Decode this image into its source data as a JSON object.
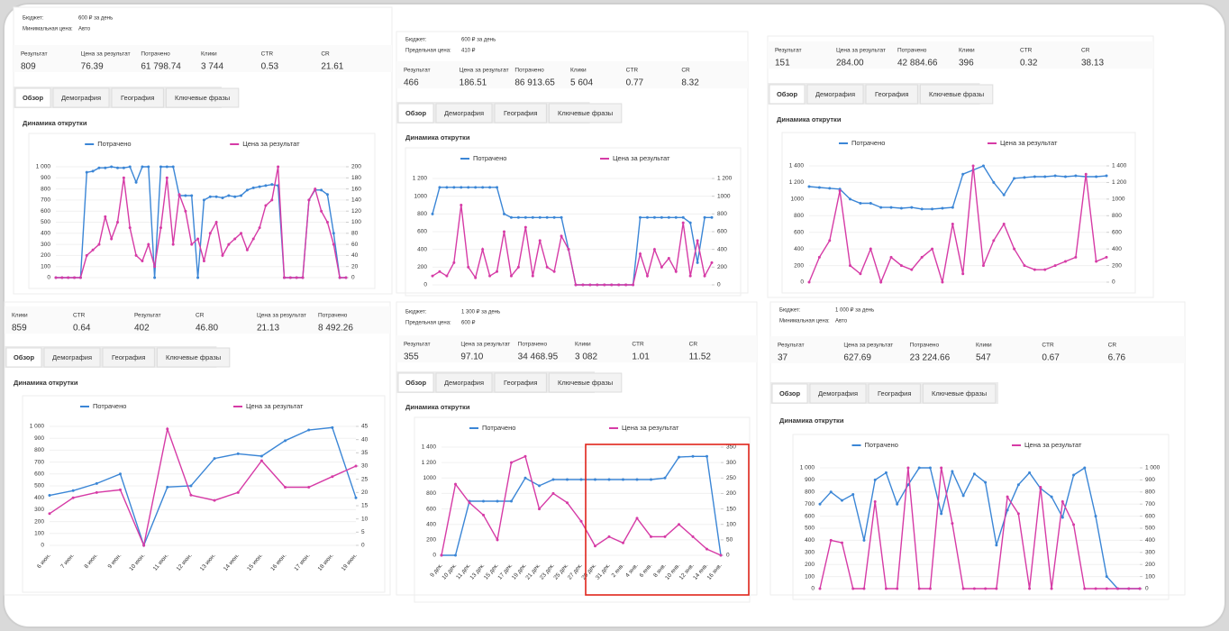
{
  "panels": [
    {
      "budget": [
        {
          "label": "Бюджет:",
          "value": "600 ₽ за день"
        },
        {
          "label": "Минимальная цена:",
          "value": "Авто"
        }
      ],
      "metrics": {
        "labels": [
          "Результат",
          "Цена за результат",
          "Потрачено",
          "Клики",
          "CTR",
          "CR"
        ],
        "values": [
          "809",
          "76.39",
          "61 798.74",
          "3 744",
          "0.53",
          "21.61"
        ]
      },
      "tabs": [
        "Обзор",
        "Демография",
        "География",
        "Ключевые фразы"
      ]
    },
    {
      "budget": [
        {
          "label": "Бюджет:",
          "value": "600 ₽ за день"
        },
        {
          "label": "Предельная цена:",
          "value": "410 ₽"
        }
      ],
      "metrics": {
        "labels": [
          "Результат",
          "Цена за результат",
          "Потрачено",
          "Клики",
          "CTR",
          "CR"
        ],
        "values": [
          "466",
          "186.51",
          "86 913.65",
          "5 604",
          "0.77",
          "8.32"
        ]
      },
      "tabs": [
        "Обзор",
        "Демография",
        "География",
        "Ключевые фразы"
      ]
    },
    {
      "metrics": {
        "labels": [
          "Результат",
          "Цена за результат",
          "Потрачено",
          "Клики",
          "CTR",
          "CR"
        ],
        "values": [
          "151",
          "284.00",
          "42 884.66",
          "396",
          "0.32",
          "38.13"
        ]
      },
      "tabs": [
        "Обзор",
        "Демография",
        "География",
        "Ключевые фразы"
      ]
    },
    {
      "metrics": {
        "labels": [
          "Клики",
          "CTR",
          "Результат",
          "CR",
          "Цена за результат",
          "Потрачено"
        ],
        "values": [
          "859",
          "0.64",
          "402",
          "46.80",
          "21.13",
          "8 492.26"
        ]
      },
      "tabs": [
        "Обзор",
        "Демография",
        "География",
        "Ключевые фразы"
      ]
    },
    {
      "budget": [
        {
          "label": "Бюджет:",
          "value": "1 300 ₽ за день"
        },
        {
          "label": "Предельная цена:",
          "value": "600 ₽"
        }
      ],
      "metrics": {
        "labels": [
          "Результат",
          "Цена за результат",
          "Потрачено",
          "Клики",
          "CTR",
          "CR"
        ],
        "values": [
          "355",
          "97.10",
          "34 468.95",
          "3 082",
          "1.01",
          "11.52"
        ]
      },
      "tabs": [
        "Обзор",
        "Демография",
        "География",
        "Ключевые фразы"
      ]
    },
    {
      "budget": [
        {
          "label": "Бюджет:",
          "value": "1 000 ₽ за день"
        },
        {
          "label": "Минимальная цена:",
          "value": "Авто"
        }
      ],
      "metrics": {
        "labels": [
          "Результат",
          "Цена за результат",
          "Потрачено",
          "Клики",
          "CTR",
          "CR"
        ],
        "values": [
          "37",
          "627.69",
          "23 224.66",
          "547",
          "0.67",
          "6.76"
        ]
      },
      "tabs": [
        "Обзор",
        "Демография",
        "География",
        "Ключевые фразы"
      ]
    }
  ],
  "chart_data": [
    {
      "type": "line",
      "title": "Динамика открутки",
      "series": [
        {
          "name": "Потрачено",
          "color": "#3b86d6",
          "values": [
            0,
            0,
            0,
            0,
            0,
            950,
            960,
            990,
            990,
            1000,
            990,
            990,
            1000,
            860,
            1000,
            1000,
            0,
            1000,
            1000,
            1000,
            740,
            740,
            740,
            0,
            700,
            730,
            730,
            720,
            740,
            730,
            740,
            790,
            810,
            820,
            830,
            840,
            830,
            0,
            0,
            0,
            0,
            700,
            790,
            790,
            750,
            400,
            0,
            0
          ]
        },
        {
          "name": "Цена за результат",
          "color": "#d63ba6",
          "axis": "y2",
          "values": [
            0,
            0,
            0,
            0,
            0,
            40,
            50,
            60,
            110,
            70,
            100,
            180,
            90,
            40,
            30,
            60,
            20,
            90,
            180,
            60,
            150,
            120,
            60,
            70,
            30,
            80,
            100,
            40,
            60,
            70,
            80,
            50,
            70,
            90,
            130,
            140,
            200,
            0,
            0,
            0,
            0,
            140,
            160,
            120,
            100,
            60,
            0,
            0
          ]
        }
      ],
      "ylim": [
        0,
        1000
      ],
      "yticks": [
        0,
        100,
        200,
        300,
        400,
        500,
        600,
        700,
        800,
        900,
        {
          "value": 1000,
          "label": "1 000"
        }
      ],
      "y2lim": [
        0,
        200
      ],
      "y2ticks": [
        0,
        20,
        40,
        60,
        80,
        100,
        120,
        140,
        160,
        180,
        200
      ]
    },
    {
      "type": "line",
      "title": "Динамика открутки",
      "series": [
        {
          "name": "Потрачено",
          "color": "#3b86d6",
          "values": [
            800,
            1100,
            1100,
            1100,
            1100,
            1100,
            1100,
            1100,
            1100,
            1100,
            800,
            760,
            760,
            760,
            760,
            760,
            760,
            760,
            760,
            400,
            0,
            0,
            0,
            0,
            0,
            0,
            0,
            0,
            0,
            760,
            760,
            760,
            760,
            760,
            760,
            760,
            700,
            250,
            760,
            760
          ]
        },
        {
          "name": "Цена за результат",
          "color": "#d63ba6",
          "axis": "y2",
          "values": [
            100,
            150,
            100,
            250,
            900,
            200,
            80,
            400,
            100,
            150,
            600,
            100,
            200,
            650,
            100,
            500,
            200,
            150,
            550,
            400,
            0,
            0,
            0,
            0,
            0,
            0,
            0,
            0,
            0,
            350,
            100,
            400,
            200,
            300,
            150,
            700,
            100,
            500,
            100,
            250
          ]
        }
      ],
      "ylim": [
        0,
        1200
      ],
      "yticks": [
        0,
        200,
        400,
        600,
        800,
        1000,
        {
          "value": 1200,
          "label": "1 200"
        }
      ],
      "y2lim": [
        0,
        1200
      ],
      "y2ticks": [
        0,
        200,
        400,
        600,
        800,
        1000,
        {
          "value": 1200,
          "label": "1 200"
        }
      ]
    },
    {
      "type": "line",
      "title": "Динамика открутки",
      "series": [
        {
          "name": "Потрачено",
          "color": "#3b86d6",
          "values": [
            1150,
            1140,
            1130,
            1120,
            1000,
            950,
            950,
            900,
            900,
            890,
            900,
            880,
            880,
            890,
            900,
            1300,
            1350,
            1400,
            1200,
            1050,
            1250,
            1260,
            1270,
            1270,
            1280,
            1270,
            1280,
            1270,
            1270,
            1280
          ]
        },
        {
          "name": "Цена за результат",
          "color": "#d63ba6",
          "axis": "y2",
          "values": [
            0,
            300,
            500,
            1100,
            200,
            100,
            400,
            0,
            300,
            200,
            150,
            300,
            400,
            0,
            700,
            100,
            1400,
            200,
            500,
            700,
            400,
            200,
            150,
            150,
            200,
            250,
            300,
            1300,
            250,
            300
          ]
        }
      ],
      "ylim": [
        0,
        1400
      ],
      "yticks": [
        0,
        200,
        400,
        600,
        800,
        1000,
        {
          "value": 1200,
          "label": "1 200"
        },
        {
          "value": 1400,
          "label": "1 400"
        }
      ],
      "y2lim": [
        0,
        1400
      ],
      "y2ticks": [
        0,
        200,
        400,
        600,
        800,
        1000,
        {
          "value": 1200,
          "label": "1 200"
        },
        {
          "value": 1400,
          "label": "1 400"
        }
      ]
    },
    {
      "type": "line",
      "title": "Динамика открутки",
      "categories": [
        "6 июн.",
        "7 июн.",
        "8 июн.",
        "9 июн.",
        "10 июн.",
        "11 июн.",
        "12 июн.",
        "13 июн.",
        "14 июн.",
        "15 июн.",
        "16 июн.",
        "17 июн.",
        "18 июн.",
        "19 июн."
      ],
      "series": [
        {
          "name": "Потрачено",
          "color": "#3b86d6",
          "values": [
            420,
            460,
            520,
            600,
            0,
            490,
            500,
            730,
            770,
            750,
            880,
            970,
            990,
            400
          ]
        },
        {
          "name": "Цена за результат",
          "color": "#d63ba6",
          "axis": "y2",
          "values": [
            12,
            18,
            20,
            21,
            0,
            44,
            19,
            17,
            20,
            32,
            22,
            22,
            26,
            30
          ]
        }
      ],
      "ylim": [
        0,
        1000
      ],
      "yticks": [
        0,
        100,
        200,
        300,
        400,
        500,
        600,
        700,
        800,
        900,
        {
          "value": 1000,
          "label": "1 000"
        }
      ],
      "y2lim": [
        0,
        45
      ],
      "y2ticks": [
        0,
        5,
        10,
        15,
        20,
        25,
        30,
        35,
        40,
        45
      ]
    },
    {
      "type": "line",
      "title": "Динамика открутки",
      "categories": [
        "9 дек.",
        "10 дек.",
        "11 дек.",
        "13 дек.",
        "15 дек.",
        "17 дек.",
        "19 дек.",
        "21 дек.",
        "23 дек.",
        "25 дек.",
        "27 дек.",
        "29 дек.",
        "31 дек.",
        "2 янв.",
        "4 янв.",
        "6 янв.",
        "8 янв.",
        "10 янв.",
        "12 янв.",
        "14 янв.",
        "16 янв."
      ],
      "series": [
        {
          "name": "Потрачено",
          "color": "#3b86d6",
          "values": [
            0,
            0,
            700,
            700,
            700,
            700,
            1000,
            900,
            980,
            980,
            980,
            980,
            980,
            980,
            980,
            980,
            1000,
            1270,
            1280,
            1280,
            0
          ]
        },
        {
          "name": "Цена за результат",
          "color": "#d63ba6",
          "axis": "y2",
          "values": [
            0,
            230,
            170,
            130,
            50,
            300,
            320,
            150,
            200,
            170,
            110,
            30,
            60,
            40,
            120,
            60,
            60,
            100,
            60,
            20,
            0
          ]
        }
      ],
      "ylim": [
        0,
        1400
      ],
      "yticks": [
        0,
        200,
        400,
        600,
        800,
        1000,
        {
          "value": 1200,
          "label": "1 200"
        },
        {
          "value": 1400,
          "label": "1 400"
        }
      ],
      "y2lim": [
        0,
        350
      ],
      "y2ticks": [
        0,
        50,
        100,
        150,
        200,
        250,
        300,
        350
      ]
    },
    {
      "type": "line",
      "title": "Динамика открутки",
      "series": [
        {
          "name": "Потрачено",
          "color": "#3b86d6",
          "values": [
            700,
            800,
            730,
            780,
            400,
            900,
            960,
            700,
            860,
            1000,
            1000,
            620,
            970,
            770,
            950,
            880,
            360,
            650,
            860,
            960,
            830,
            760,
            590,
            940,
            1000,
            600,
            100,
            0,
            0,
            0
          ]
        },
        {
          "name": "Цена за результат",
          "color": "#d63ba6",
          "axis": "y2",
          "values": [
            0,
            400,
            380,
            0,
            0,
            720,
            0,
            0,
            1000,
            0,
            0,
            1000,
            540,
            0,
            0,
            0,
            0,
            760,
            620,
            0,
            840,
            0,
            720,
            530,
            0,
            0,
            0,
            0,
            0,
            0
          ]
        }
      ],
      "ylim": [
        0,
        1000
      ],
      "yticks": [
        0,
        100,
        200,
        300,
        400,
        500,
        600,
        700,
        800,
        900,
        {
          "value": 1000,
          "label": "1 000"
        }
      ],
      "y2lim": [
        0,
        1000
      ],
      "y2ticks": [
        0,
        100,
        200,
        300,
        400,
        500,
        600,
        700,
        800,
        900,
        {
          "value": 1000,
          "label": "1 000"
        }
      ]
    }
  ]
}
